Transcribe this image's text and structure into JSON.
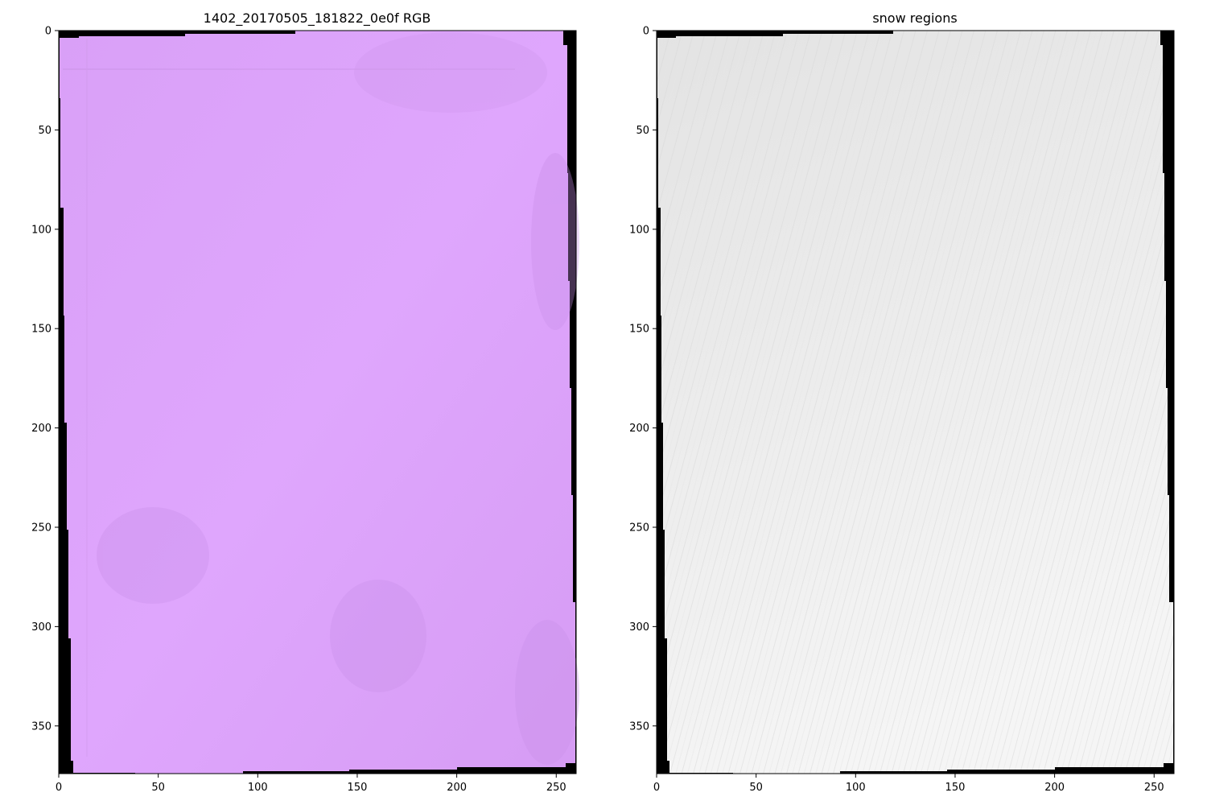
{
  "chart_data": [
    {
      "type": "image",
      "title": "1402_20170505_181822_0e0f RGB",
      "xlim": [
        0,
        260
      ],
      "ylim": [
        374,
        0
      ],
      "xticks": [
        0,
        50,
        100,
        150,
        200,
        250
      ],
      "yticks": [
        0,
        50,
        100,
        150,
        200,
        250,
        300,
        350
      ],
      "colors": {
        "image": "#dfa6fd",
        "shade": "#c98ee8",
        "mask": "#000000"
      }
    },
    {
      "type": "image",
      "title": "snow regions",
      "xlim": [
        0,
        260
      ],
      "ylim": [
        374,
        0
      ],
      "xticks": [
        0,
        50,
        100,
        150,
        200,
        250
      ],
      "yticks": [
        0,
        50,
        100,
        150,
        200,
        250,
        300,
        350
      ],
      "colors": {
        "image": "#eeeeee",
        "shade": "#dcdcdc",
        "mask": "#000000"
      }
    }
  ]
}
